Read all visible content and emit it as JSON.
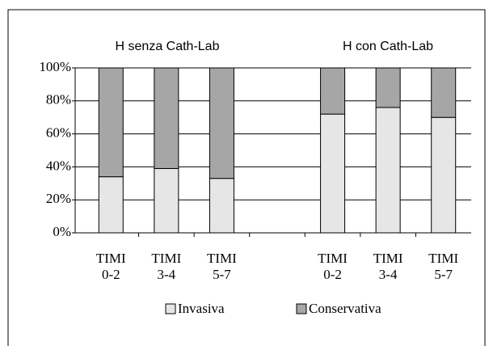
{
  "chart_data": {
    "type": "stacked_bar",
    "annotations": [
      "H senza Cath-Lab",
      "H con Cath-Lab"
    ],
    "categories": [
      "TIMI\n0-2",
      "TIMI\n3-4",
      "TIMI\n5-7",
      null,
      "TIMI\n0-2",
      "TIMI\n3-4",
      "TIMI\n5-7"
    ],
    "series": [
      {
        "name": "Invasiva",
        "color": "#e6e6e6",
        "values": [
          34,
          39,
          33,
          null,
          72,
          76,
          70
        ]
      },
      {
        "name": "Conservativa",
        "color": "#a6a6a6",
        "values": [
          66,
          61,
          67,
          null,
          28,
          24,
          30
        ]
      }
    ],
    "ylim": [
      0,
      100
    ],
    "yticks": [
      {
        "value": 0,
        "label": "0%"
      },
      {
        "value": 20,
        "label": "20%"
      },
      {
        "value": 40,
        "label": "40%"
      },
      {
        "value": 60,
        "label": "60%"
      },
      {
        "value": 80,
        "label": "80%"
      },
      {
        "value": 100,
        "label": "100%"
      }
    ],
    "grid": true,
    "legend": "bottom"
  }
}
